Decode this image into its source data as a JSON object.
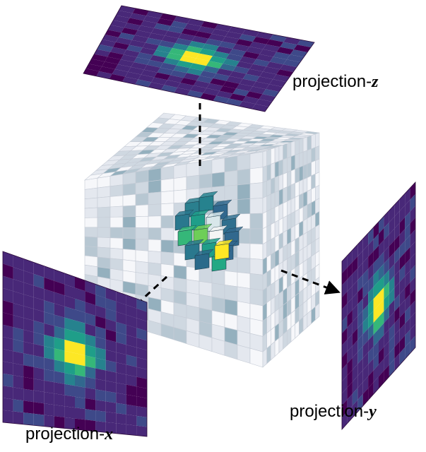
{
  "labels": {
    "projection_z": {
      "prefix": "projection-",
      "axis": "z"
    },
    "projection_x": {
      "prefix": "projection-",
      "axis": "x"
    },
    "projection_y": {
      "prefix": "projection-",
      "axis": "y"
    }
  },
  "grid_cells": 14,
  "colors": {
    "viridis": [
      "#440154",
      "#482878",
      "#3e4989",
      "#31688e",
      "#26828e",
      "#1f9e89",
      "#35b779",
      "#6ece58",
      "#b5de2b",
      "#fde725"
    ],
    "cube_face_light": "#e9ecf3",
    "cube_face_tint": "#7fa6b6",
    "cube_edge": "#c9ced8",
    "dash": "#000000"
  },
  "icons": {
    "arrow": "arrowhead-icon"
  }
}
